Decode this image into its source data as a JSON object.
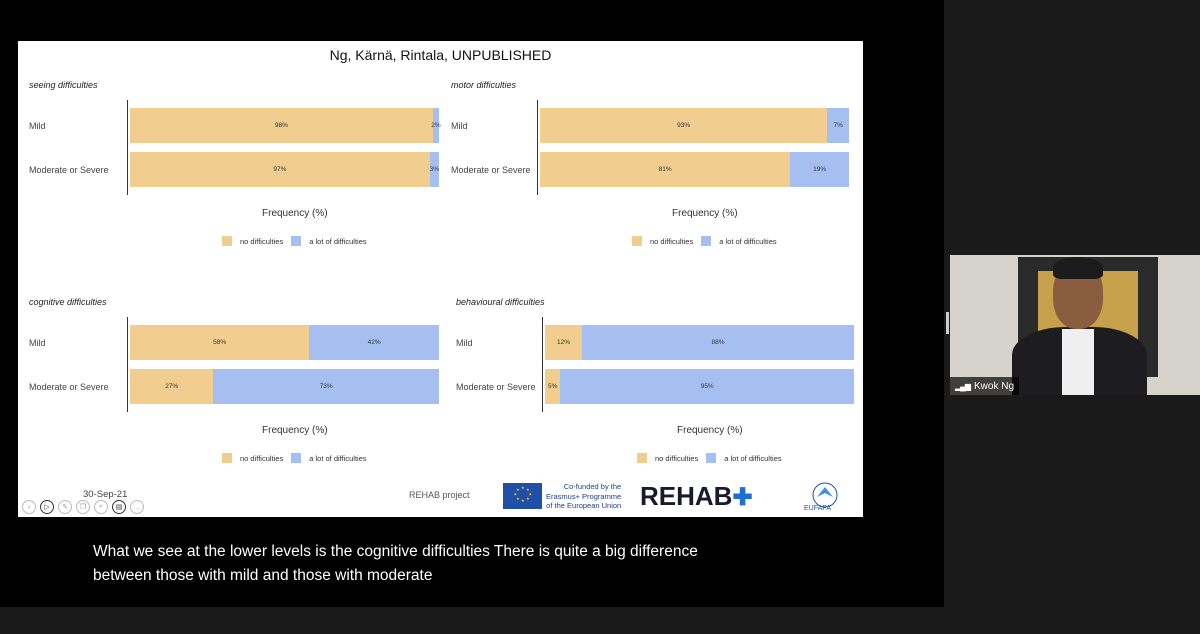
{
  "slide": {
    "title": "Ng, Kärnä, Rintala, UNPUBLISHED",
    "date": "30-Sep-21",
    "project": "REHAB project",
    "eu_text": [
      "Co-funded by the",
      "Erasmus+ Programme",
      "of the European Union"
    ],
    "rehab_logo": "REHAB",
    "eufapa_logo": "EUFAPA",
    "colors": {
      "no_difficulties": "#f1cd8f",
      "a_lot_of_difficulties": "#a6bff1"
    }
  },
  "chart_data": [
    {
      "type": "bar",
      "title": "seeing difficulties",
      "categories": [
        "Mild",
        "Moderate or Severe"
      ],
      "series": [
        {
          "name": "no difficulties",
          "values": [
            98,
            97
          ],
          "labels": [
            "98%",
            "97%"
          ]
        },
        {
          "name": "a lot of difficulties",
          "values": [
            2,
            3
          ],
          "labels": [
            "2%",
            "3%"
          ]
        }
      ],
      "xlabel": "Frequency (%)",
      "stacked": true,
      "legend": "bottom"
    },
    {
      "type": "bar",
      "title": "motor difficulties",
      "categories": [
        "Mild",
        "Moderate or Severe"
      ],
      "series": [
        {
          "name": "no difficulties",
          "values": [
            93,
            81
          ],
          "labels": [
            "93%",
            "81%"
          ]
        },
        {
          "name": "a lot of difficulties",
          "values": [
            7,
            19
          ],
          "labels": [
            "7%",
            "19%"
          ]
        }
      ],
      "xlabel": "Frequency (%)",
      "stacked": true,
      "legend": "bottom"
    },
    {
      "type": "bar",
      "title": "cognitive difficulties",
      "categories": [
        "Mild",
        "Moderate or Severe"
      ],
      "series": [
        {
          "name": "no difficulties",
          "values": [
            58,
            27
          ],
          "labels": [
            "58%",
            "27%"
          ]
        },
        {
          "name": "a lot of difficulties",
          "values": [
            42,
            73
          ],
          "labels": [
            "42%",
            "73%"
          ]
        }
      ],
      "xlabel": "Frequency (%)",
      "stacked": true,
      "legend": "bottom"
    },
    {
      "type": "bar",
      "title": "behavioural difficulties",
      "categories": [
        "Mild",
        "Moderate or Severe"
      ],
      "series": [
        {
          "name": "no difficulties",
          "values": [
            12,
            5
          ],
          "labels": [
            "12%",
            "5%"
          ]
        },
        {
          "name": "a lot of difficulties",
          "values": [
            88,
            95
          ],
          "labels": [
            "88%",
            "95%"
          ]
        }
      ],
      "xlabel": "Frequency (%)",
      "stacked": true,
      "legend": "bottom"
    }
  ],
  "legend": {
    "no": "no difficulties",
    "lot": "a lot of difficulties"
  },
  "caption": {
    "line1": "What we see at the lower levels is the cognitive difficulties There is quite a big difference",
    "line2": "between those with mild and those with moderate"
  },
  "participant": {
    "name": "Kwok Ng",
    "signal_icon": "signal-bars-icon"
  },
  "controls": [
    "prev-icon",
    "play-icon",
    "pen-icon",
    "copy-icon",
    "zoom-icon",
    "slides-icon",
    "more-icon"
  ]
}
